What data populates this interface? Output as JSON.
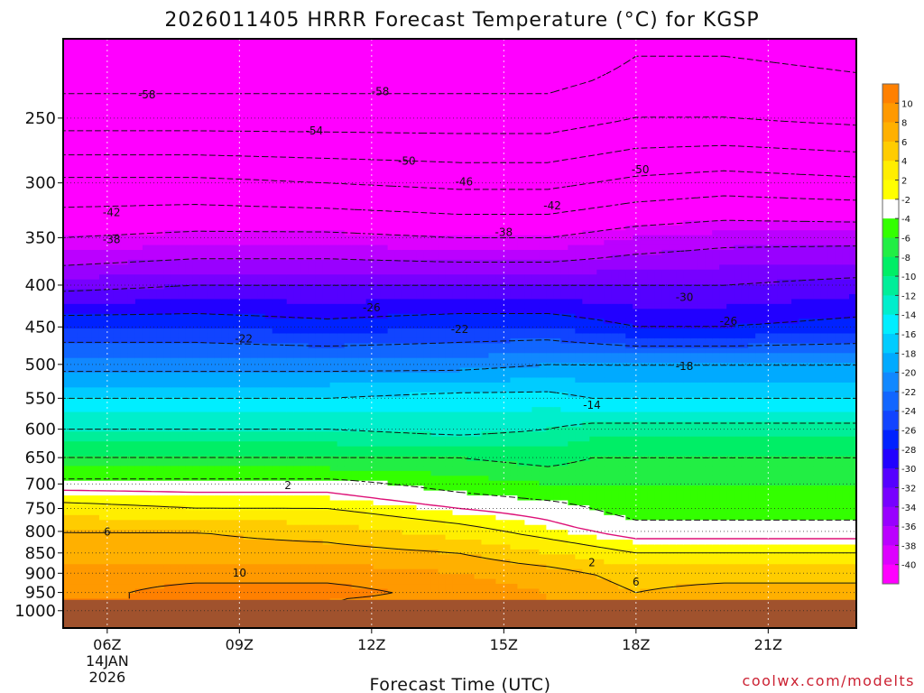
{
  "chart_data": {
    "type": "heatmap",
    "title": "2026011405 HRRR Forecast Temperature (°C) for KGSP",
    "xlabel": "Forecast Time (UTC)",
    "ylabel": "",
    "x_ticks": [
      {
        "hour": 6,
        "label": "06Z",
        "sub1": "14JAN",
        "sub2": "2026"
      },
      {
        "hour": 9,
        "label": "09Z"
      },
      {
        "hour": 12,
        "label": "12Z"
      },
      {
        "hour": 15,
        "label": "15Z"
      },
      {
        "hour": 18,
        "label": "18Z"
      },
      {
        "hour": 21,
        "label": "21Z"
      }
    ],
    "xlim": [
      5,
      23
    ],
    "y_ticks": [
      {
        "p": 250,
        "label": "250"
      },
      {
        "p": 300,
        "label": "300"
      },
      {
        "p": 350,
        "label": "350"
      },
      {
        "p": 400,
        "label": "400"
      },
      {
        "p": 450,
        "label": "450"
      },
      {
        "p": 500,
        "label": "500"
      },
      {
        "p": 550,
        "label": "550"
      },
      {
        "p": 600,
        "label": "600"
      },
      {
        "p": 650,
        "label": "650"
      },
      {
        "p": 700,
        "label": "700"
      },
      {
        "p": 750,
        "label": "750"
      },
      {
        "p": 800,
        "label": "800"
      },
      {
        "p": 850,
        "label": "850"
      },
      {
        "p": 900,
        "label": "900"
      },
      {
        "p": 950,
        "label": "950"
      },
      {
        "p": 1000,
        "label": "1000"
      }
    ],
    "ylim": [
      200,
      1050
    ],
    "y_scale": "log-pressure",
    "ground_top_p": 970,
    "times": [
      5,
      8,
      11,
      14,
      16,
      17,
      18,
      20,
      23
    ],
    "levels": [
      200,
      250,
      300,
      350,
      400,
      450,
      500,
      550,
      600,
      650,
      700,
      750,
      800,
      850,
      900,
      950,
      970
    ],
    "temperature": [
      [
        -62,
        -62,
        -62,
        -62,
        -62,
        -61,
        -59,
        -59,
        -60
      ],
      [
        -56,
        -56,
        -56,
        -56,
        -56,
        -55,
        -54,
        -54,
        -55
      ],
      [
        -45,
        -45,
        -46,
        -47,
        -47,
        -46,
        -45,
        -44,
        -45
      ],
      [
        -38,
        -37,
        -37,
        -38,
        -38,
        -37,
        -36,
        -35,
        -35
      ],
      [
        -31,
        -30,
        -30,
        -30,
        -30,
        -30,
        -30,
        -30,
        -29
      ],
      [
        -24,
        -24,
        -25,
        -24,
        -24,
        -25,
        -26,
        -26,
        -25
      ],
      [
        -19,
        -19,
        -19,
        -19,
        -18,
        -18,
        -18,
        -18,
        -18
      ],
      [
        -14,
        -14,
        -14,
        -13,
        -13,
        -14,
        -14,
        -14,
        -14
      ],
      [
        -10,
        -10,
        -10,
        -11,
        -10,
        -9,
        -9,
        -9,
        -9
      ],
      [
        -6,
        -6,
        -6,
        -6,
        -7,
        -6,
        -6,
        -6,
        -6
      ],
      [
        -1,
        -1,
        -1,
        -3,
        -4,
        -4,
        -4,
        -4,
        -4
      ],
      [
        3,
        2,
        2,
        0,
        -1,
        -2,
        -3,
        -3,
        -3
      ],
      [
        6,
        6,
        5,
        3,
        1,
        0,
        -1,
        -1,
        -1
      ],
      [
        7,
        7,
        7,
        6,
        4,
        3,
        2,
        2,
        2
      ],
      [
        9,
        9,
        9,
        8,
        7,
        6,
        5,
        5,
        5
      ],
      [
        9,
        11,
        11,
        9,
        8,
        7,
        6,
        7,
        7
      ],
      [
        10,
        10,
        10,
        9,
        8,
        7,
        6,
        7,
        6
      ]
    ],
    "contour_labels": [
      {
        "t": 6.9,
        "p": 234,
        "text": "-58"
      },
      {
        "t": 12.2,
        "p": 232,
        "text": "-58"
      },
      {
        "t": 10.7,
        "p": 259,
        "text": "-54"
      },
      {
        "t": 12.8,
        "p": 282,
        "text": "-50"
      },
      {
        "t": 18.1,
        "p": 289,
        "text": "-50"
      },
      {
        "t": 14.1,
        "p": 299,
        "text": "-46"
      },
      {
        "t": 6.1,
        "p": 326,
        "text": "-42"
      },
      {
        "t": 16.1,
        "p": 320,
        "text": "-42"
      },
      {
        "t": 6.1,
        "p": 352,
        "text": "-38"
      },
      {
        "t": 15.0,
        "p": 345,
        "text": "-38"
      },
      {
        "t": 19.1,
        "p": 414,
        "text": "-30"
      },
      {
        "t": 12.0,
        "p": 426,
        "text": "-26"
      },
      {
        "t": 20.1,
        "p": 443,
        "text": "-26"
      },
      {
        "t": 9.1,
        "p": 465,
        "text": "-22"
      },
      {
        "t": 14.0,
        "p": 453,
        "text": "-22"
      },
      {
        "t": 19.1,
        "p": 503,
        "text": "-18"
      },
      {
        "t": 17.0,
        "p": 561,
        "text": "-14"
      },
      {
        "t": 10.1,
        "p": 703,
        "text": "2"
      },
      {
        "t": 6.0,
        "p": 801,
        "text": "6"
      },
      {
        "t": 17.0,
        "p": 873,
        "text": "2"
      },
      {
        "t": 9.0,
        "p": 899,
        "text": "10"
      },
      {
        "t": 18.0,
        "p": 923,
        "text": "6"
      }
    ],
    "colorbar": {
      "tick_labels": [
        "10",
        "8",
        "6",
        "4",
        "2",
        "-2",
        "-4",
        "-6",
        "-8",
        "-10",
        "-12",
        "-14",
        "-16",
        "-18",
        "-20",
        "-22",
        "-24",
        "-26",
        "-28",
        "-30",
        "-32",
        "-34",
        "-36",
        "-38",
        "-40"
      ],
      "colors": [
        "#ff8000",
        "#ff9900",
        "#ffb000",
        "#ffcc00",
        "#ffee00",
        "#ffff00",
        "#ffffff",
        "#33ff00",
        "#22ee44",
        "#00ee66",
        "#00ee99",
        "#00eecc",
        "#00eeff",
        "#00ccff",
        "#00aaff",
        "#1188ff",
        "#1166ff",
        "#1144ff",
        "#0022ff",
        "#2200ff",
        "#5500ff",
        "#7700ff",
        "#9900ff",
        "#bb00ff",
        "#dd00ff",
        "#ff00ff"
      ]
    },
    "colors": {
      "ground": "#a0522d",
      "freezing_line": "#dd1177",
      "contour_dashed": "#111111",
      "contour_solid": "#111111"
    },
    "credit": "coolwx.com/modelts"
  }
}
